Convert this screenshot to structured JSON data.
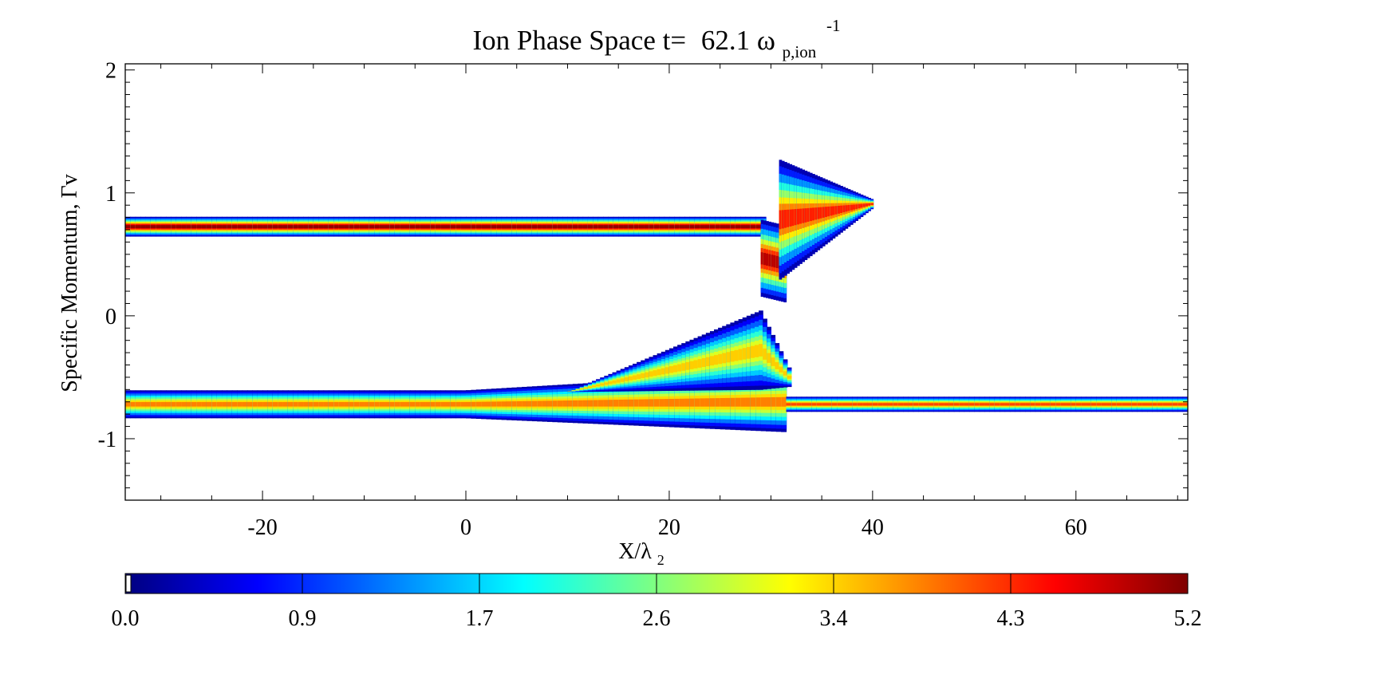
{
  "chart_data": {
    "type": "heatmap",
    "title": {
      "main": "Ion Phase Space t=",
      "value": "62.1",
      "omega": "ω",
      "subscript": "p,ion",
      "superscript": "-1"
    },
    "xlabel": {
      "main": "X/λ",
      "subscript": "2"
    },
    "ylabel": "Specific Momentum, Γv",
    "xlim": [
      -33.5,
      71
    ],
    "ylim": [
      -1.5,
      2.05
    ],
    "xticks": [
      "-20",
      "0",
      "20",
      "40",
      "60"
    ],
    "xtick_values": [
      -20,
      0,
      20,
      40,
      60
    ],
    "yticks": [
      "2",
      "1",
      "0",
      "-1"
    ],
    "ytick_values": [
      2,
      1,
      0,
      -1
    ],
    "colorbar": {
      "range": [
        0.0,
        5.2
      ],
      "tick_labels": [
        "0.0",
        "0.9",
        "1.7",
        "2.6",
        "3.4",
        "4.3",
        "5.2"
      ],
      "colors": [
        "#00007f",
        "#0000ff",
        "#0080ff",
        "#00ffff",
        "#80ff80",
        "#ffff00",
        "#ff8000",
        "#ff0000",
        "#7f0000"
      ]
    },
    "features": [
      {
        "name": "beam",
        "x": [
          -33.5,
          31
        ],
        "y_center": 0.72,
        "half_width": 0.08,
        "peak": 5.1
      },
      {
        "name": "beam-drop",
        "x": [
          29.0,
          31.5
        ],
        "y": [
          0.12,
          0.8
        ],
        "peak": 4.8
      },
      {
        "name": "loop",
        "x": [
          30.5,
          40.0
        ],
        "y": [
          0.35,
          1.33
        ],
        "peak": 4.4
      },
      {
        "name": "background",
        "x": [
          -33.5,
          71
        ],
        "y_center": -0.72,
        "half_width": 0.1,
        "peak": 4.2
      },
      {
        "name": "hump",
        "x": [
          5,
          31.5
        ],
        "y_top_max": 0.0,
        "peak": 3.6
      }
    ]
  }
}
